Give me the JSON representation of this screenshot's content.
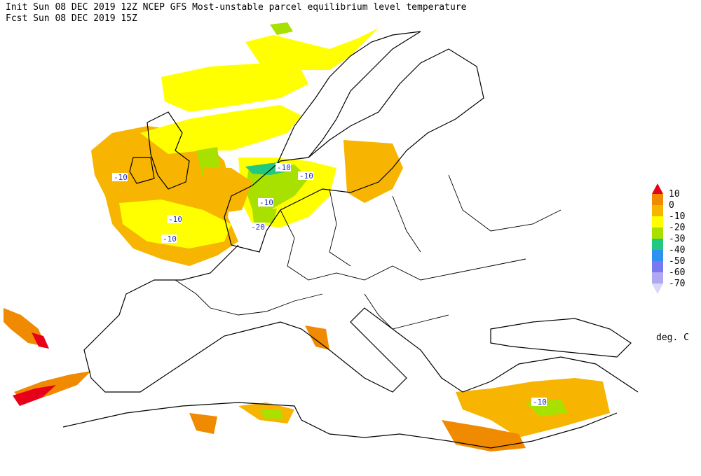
{
  "header": {
    "init": "Init  Sun 08 DEC 2019 12Z  NCEP GFS Most-unstable parcel equilibrium level temperature",
    "forecast": "Fcst Sun 08 DEC 2019 15Z"
  },
  "legend": {
    "labels": [
      "10",
      "0",
      "-10",
      "-20",
      "-30",
      "-40",
      "-50",
      "-60",
      "-70"
    ],
    "colors": [
      "#e8001a",
      "#f08a00",
      "#f7b400",
      "#ffff00",
      "#a8e000",
      "#20c880",
      "#3090f0",
      "#7a7af0",
      "#b0a8f0",
      "#d8d8f8"
    ],
    "unit": "deg. C"
  },
  "contour_labels": [
    "-10",
    "-10",
    "-10",
    "-10",
    "-10",
    "-20",
    "-10",
    "-10"
  ]
}
